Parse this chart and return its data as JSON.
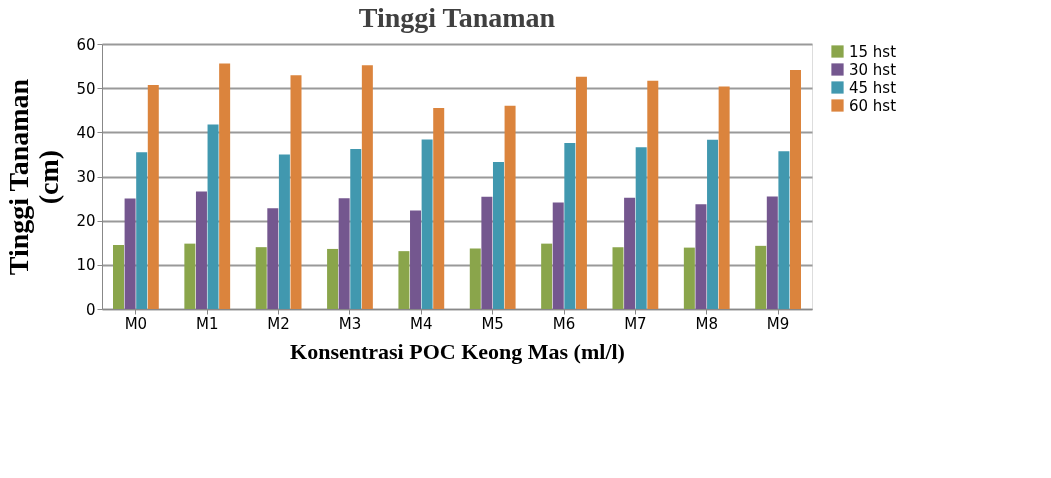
{
  "chart_data": {
    "type": "bar",
    "title": "Tinggi Tanaman",
    "xlabel": "Konsentrasi POC Keong Mas (ml/l)",
    "ylabel": "Tinggi Tanaman (cm)",
    "categories": [
      "M0",
      "M1",
      "M2",
      "M3",
      "M4",
      "M5",
      "M6",
      "M7",
      "M8",
      "M9"
    ],
    "series": [
      {
        "name": "15 hst",
        "color": "#8aa54b",
        "values": [
          14.5,
          14.8,
          14,
          13.6,
          13.1,
          13.7,
          14.8,
          14,
          13.9,
          14.3
        ]
      },
      {
        "name": "30 hst",
        "color": "#74578f",
        "values": [
          25,
          26.6,
          22.8,
          25.1,
          22.3,
          25.4,
          24.1,
          25.2,
          23.7,
          25.5
        ]
      },
      {
        "name": "45 hst",
        "color": "#4198af",
        "values": [
          35.5,
          41.8,
          35,
          36.2,
          38.4,
          33.3,
          37.6,
          36.6,
          38.3,
          35.7
        ]
      },
      {
        "name": "60 hst",
        "color": "#db843d",
        "values": [
          50.7,
          55.6,
          52.9,
          55.2,
          45.5,
          46,
          52.6,
          51.7,
          50.4,
          54.1
        ]
      }
    ],
    "ylim": [
      0,
      60
    ],
    "yticks": [
      0,
      10,
      20,
      30,
      40,
      50,
      60
    ],
    "grid": "y",
    "legend": "right"
  }
}
